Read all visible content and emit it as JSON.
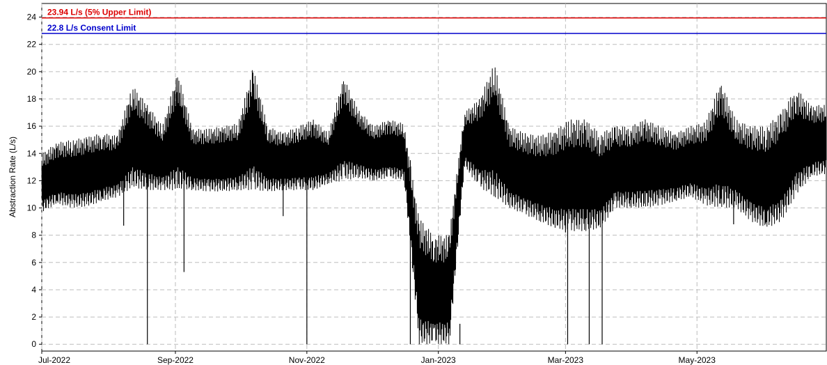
{
  "chart_data": {
    "type": "line",
    "ylabel": "Abstraction Rate (L/s)",
    "ylim": [
      -0.5,
      25
    ],
    "y_ticks": [
      "0",
      "2",
      "4",
      "6",
      "8",
      "10",
      "12",
      "14",
      "16",
      "18",
      "20",
      "22",
      "24"
    ],
    "x_range": [
      "2022-07-01",
      "2023-06-30"
    ],
    "x_ticks": [
      {
        "date": "2022-07-01",
        "label": "Jul-2022"
      },
      {
        "date": "2022-09-01",
        "label": "Sep-2022"
      },
      {
        "date": "2022-11-01",
        "label": "Nov-2022"
      },
      {
        "date": "2023-01-01",
        "label": "Jan-2023"
      },
      {
        "date": "2023-03-01",
        "label": "Mar-2023"
      },
      {
        "date": "2023-05-01",
        "label": "May-2023"
      }
    ],
    "grid": true,
    "reference_lines": [
      {
        "value": 23.94,
        "label": "23.94 L/s (5% Upper Limit)",
        "color": "#dd0000"
      },
      {
        "value": 22.8,
        "label": "22.8 L/s Consent Limit",
        "color": "#0000cc"
      }
    ],
    "series": [
      {
        "color": "#000000",
        "envelope_dates": [
          "2022-07-01",
          "2022-07-08",
          "2022-07-15",
          "2022-07-22",
          "2022-07-29",
          "2022-08-05",
          "2022-08-12",
          "2022-08-19",
          "2022-08-26",
          "2022-09-02",
          "2022-09-09",
          "2022-09-16",
          "2022-09-23",
          "2022-09-30",
          "2022-10-07",
          "2022-10-14",
          "2022-10-21",
          "2022-10-28",
          "2022-11-04",
          "2022-11-11",
          "2022-11-18",
          "2022-11-25",
          "2022-12-02",
          "2022-12-09",
          "2022-12-16",
          "2022-12-23",
          "2022-12-30",
          "2023-01-06",
          "2023-01-13",
          "2023-01-20",
          "2023-01-27",
          "2023-02-03",
          "2023-02-10",
          "2023-02-17",
          "2023-02-24",
          "2023-03-03",
          "2023-03-10",
          "2023-03-17",
          "2023-03-24",
          "2023-03-31",
          "2023-04-07",
          "2023-04-14",
          "2023-04-21",
          "2023-04-28",
          "2023-05-05",
          "2023-05-12",
          "2023-05-19",
          "2023-05-26",
          "2023-06-02",
          "2023-06-09",
          "2023-06-16",
          "2023-06-23",
          "2023-06-30"
        ],
        "envelope_min": [
          9.7,
          10.3,
          10.0,
          10.1,
          10.5,
          10.8,
          11.5,
          11.3,
          11.3,
          11.3,
          11.3,
          11.2,
          11.2,
          11.3,
          11.3,
          11.2,
          11.3,
          11.3,
          11.3,
          11.8,
          12.0,
          12.2,
          12.0,
          12.2,
          12.0,
          0.0,
          0.0,
          0.0,
          13.0,
          11.5,
          10.8,
          10.0,
          9.5,
          9.0,
          8.5,
          8.3,
          8.3,
          8.5,
          10.0,
          10.0,
          10.0,
          10.2,
          10.5,
          10.8,
          10.2,
          10.0,
          10.0,
          9.0,
          8.5,
          9.0,
          11.0,
          12.3,
          12.5
        ],
        "envelope_max": [
          14.0,
          14.8,
          15.0,
          15.2,
          15.5,
          15.3,
          19.0,
          17.6,
          16.0,
          20.0,
          15.8,
          15.8,
          16.0,
          16.2,
          20.3,
          16.0,
          15.5,
          16.0,
          16.5,
          15.5,
          19.6,
          17.2,
          16.0,
          16.5,
          16.2,
          9.3,
          8.0,
          8.0,
          17.0,
          18.0,
          20.6,
          16.0,
          15.5,
          15.3,
          15.7,
          16.5,
          16.5,
          15.5,
          16.0,
          16.0,
          16.5,
          16.0,
          15.5,
          16.0,
          16.3,
          19.3,
          16.5,
          16.0,
          16.0,
          17.0,
          18.8,
          17.5,
          17.6
        ],
        "dropouts": [
          {
            "date": "2022-08-19",
            "value": 0.0
          },
          {
            "date": "2022-08-08",
            "value": 8.7
          },
          {
            "date": "2022-09-05",
            "value": 5.3
          },
          {
            "date": "2022-10-21",
            "value": 9.4
          },
          {
            "date": "2022-11-01",
            "value": 0.0
          },
          {
            "date": "2022-12-19",
            "value": 0.0
          },
          {
            "date": "2023-01-06",
            "value": 8.0
          },
          {
            "date": "2023-01-11",
            "value": 0.0
          },
          {
            "date": "2023-03-01",
            "value": 8.2
          },
          {
            "date": "2023-03-02",
            "value": 0.0
          },
          {
            "date": "2023-03-12",
            "value": 0.0
          },
          {
            "date": "2023-03-18",
            "value": 0.0
          },
          {
            "date": "2023-05-18",
            "value": 8.8
          }
        ]
      }
    ]
  }
}
